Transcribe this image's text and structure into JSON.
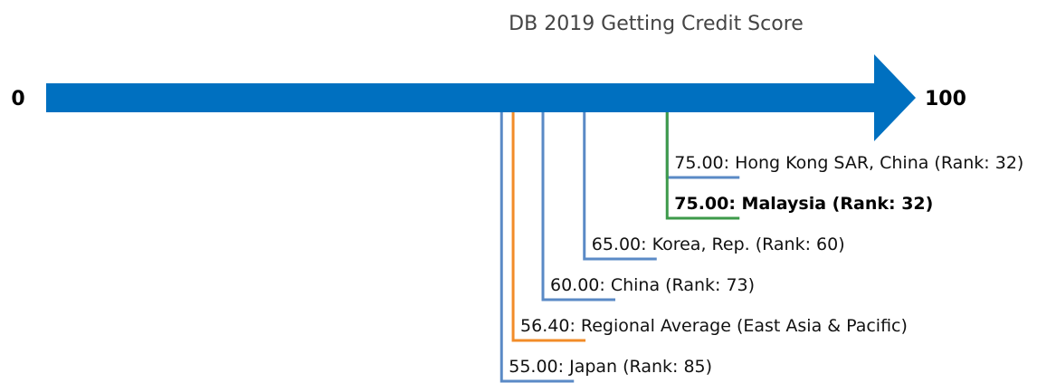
{
  "chart_data": {
    "type": "number-line",
    "title": "DB 2019 Getting Credit Score",
    "xlim": [
      0,
      100
    ],
    "xticks": [
      0,
      100
    ],
    "arrow_color": "#0070c0",
    "values": [
      75,
      75,
      65,
      60,
      56.4,
      55
    ],
    "value_labels": [
      "75.00: Hong Kong SAR, China (Rank: 32)",
      "75.00: Malaysia (Rank: 32)",
      "65.00: Korea, Rep. (Rank: 60)",
      "60.00: China (Rank: 73)",
      "56.40: Regional Average (East Asia & Pacific)",
      "55.00: Japan (Rank: 85)"
    ],
    "colors": [
      "#5a8ac6",
      "#3d9a4a",
      "#5a8ac6",
      "#5a8ac6",
      "#f28c28",
      "#5a8ac6"
    ],
    "bold": [
      false,
      true,
      false,
      false,
      false,
      false
    ]
  }
}
